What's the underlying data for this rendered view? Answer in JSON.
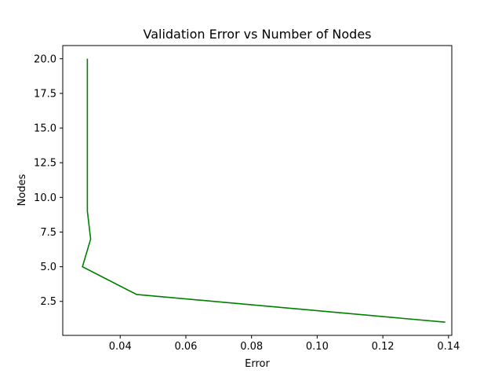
{
  "chart_data": {
    "type": "line",
    "title": "Validation Error vs Number of Nodes",
    "xlabel": "Error",
    "ylabel": "Nodes",
    "xlim": [
      0.0225,
      0.141
    ],
    "ylim": [
      0.05,
      20.95
    ],
    "xticks": [
      0.04,
      0.06,
      0.08,
      0.1,
      0.12,
      0.14
    ],
    "xtick_labels": [
      "0.04",
      "0.06",
      "0.08",
      "0.10",
      "0.12",
      "0.14"
    ],
    "yticks": [
      2.5,
      5.0,
      7.5,
      10.0,
      12.5,
      15.0,
      17.5,
      20.0
    ],
    "ytick_labels": [
      "2.5",
      "5.0",
      "7.5",
      "10.0",
      "12.5",
      "15.0",
      "17.5",
      "20.0"
    ],
    "grid": false,
    "series": [
      {
        "color": "#008000",
        "points": [
          {
            "x": 0.139,
            "y": 1
          },
          {
            "x": 0.045,
            "y": 3
          },
          {
            "x": 0.0285,
            "y": 5
          },
          {
            "x": 0.031,
            "y": 7
          },
          {
            "x": 0.03,
            "y": 9
          },
          {
            "x": 0.03,
            "y": 11
          },
          {
            "x": 0.03,
            "y": 13
          },
          {
            "x": 0.03,
            "y": 15
          },
          {
            "x": 0.03,
            "y": 17
          },
          {
            "x": 0.03,
            "y": 19
          },
          {
            "x": 0.03,
            "y": 20
          }
        ]
      }
    ]
  }
}
